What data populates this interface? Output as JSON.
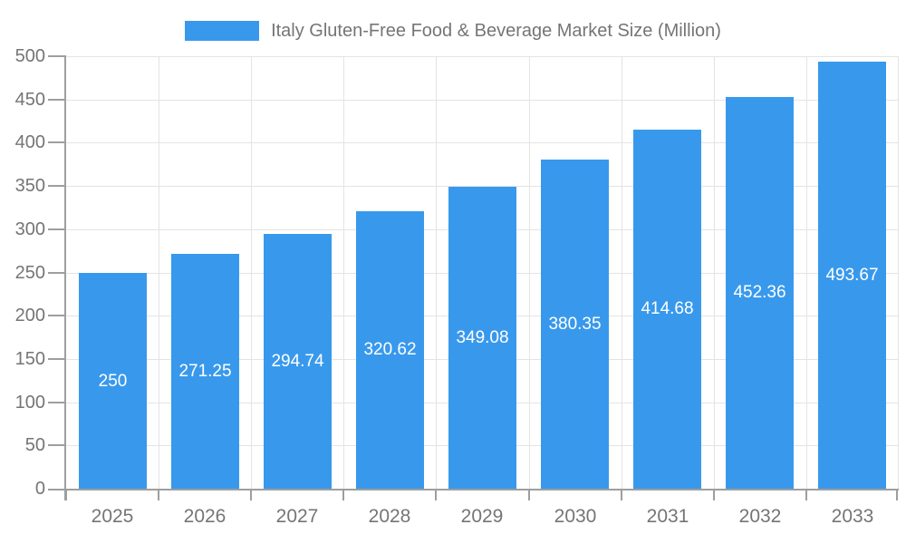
{
  "chart_data": {
    "type": "bar",
    "title": "Italy Gluten-Free Food & Beverage Market Size (Million)",
    "legend": {
      "label": "Italy Gluten-Free Food & Beverage Market Size (Million)",
      "position": "top"
    },
    "categories": [
      "2025",
      "2026",
      "2027",
      "2028",
      "2029",
      "2030",
      "2031",
      "2032",
      "2033"
    ],
    "series": [
      {
        "name": "Italy Gluten-Free Food & Beverage Market Size (Million)",
        "values": [
          250,
          271.25,
          294.74,
          320.62,
          349.08,
          380.35,
          414.68,
          452.36,
          493.67
        ],
        "labels": [
          "250",
          "271.25",
          "294.74",
          "320.62",
          "349.08",
          "380.35",
          "414.68",
          "452.36",
          "493.67"
        ]
      }
    ],
    "xlabel": "",
    "ylabel": "",
    "ylim": [
      0,
      500
    ],
    "yticks": [
      0,
      50,
      100,
      150,
      200,
      250,
      300,
      350,
      400,
      450,
      500
    ],
    "grid": true,
    "data_labels_inside_bars": true,
    "colors": {
      "bar": "#3899EC",
      "grid_line": "#E4E4E4",
      "axis_line": "#9E9E9E",
      "tick_label": "#757575",
      "legend_text": "#757575",
      "data_label": "#FFFFFF",
      "background": "#FFFFFF"
    }
  }
}
